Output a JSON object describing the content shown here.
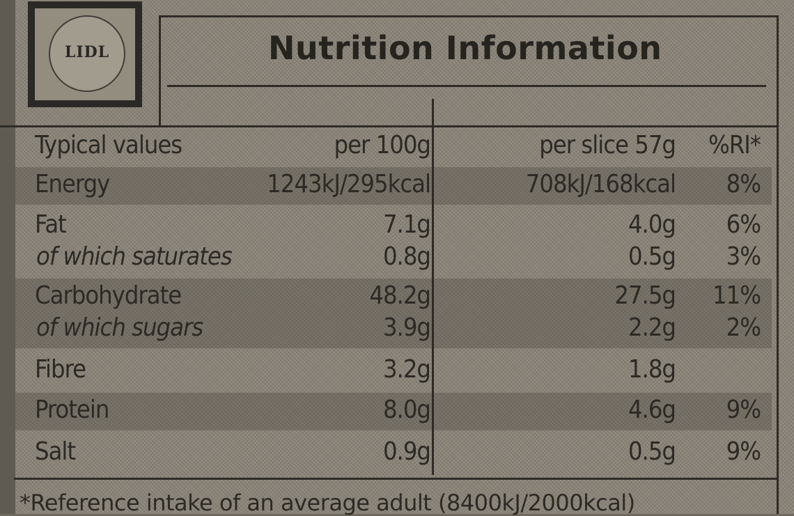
{
  "brand": {
    "logo_text": "LIDL"
  },
  "title": "Nutrition Information",
  "header": {
    "label": "Typical values",
    "per_100g": "per 100g",
    "per_slice": "per slice 57g",
    "ri": "%RI*"
  },
  "rows": [
    {
      "name": "Energy",
      "per_100g": "1243kJ/295kcal",
      "per_slice": "708kJ/168kcal",
      "ri": "8%"
    },
    {
      "name": "Fat",
      "per_100g": "7.1g",
      "per_slice": "4.0g",
      "ri": "6%"
    },
    {
      "name": "of which saturates",
      "per_100g": "0.8g",
      "per_slice": "0.5g",
      "ri": "3%"
    },
    {
      "name": "Carbohydrate",
      "per_100g": "48.2g",
      "per_slice": "27.5g",
      "ri": "11%"
    },
    {
      "name": "of which sugars",
      "per_100g": "3.9g",
      "per_slice": "2.2g",
      "ri": "2%"
    },
    {
      "name": "Fibre",
      "per_100g": "3.2g",
      "per_slice": "1.8g",
      "ri": ""
    },
    {
      "name": "Protein",
      "per_100g": "8.0g",
      "per_slice": "4.6g",
      "ri": "9%"
    },
    {
      "name": "Salt",
      "per_100g": "0.9g",
      "per_slice": "0.5g",
      "ri": "9%"
    }
  ],
  "footnote": "*Reference intake of an average adult (8400kJ/2000kcal)"
}
